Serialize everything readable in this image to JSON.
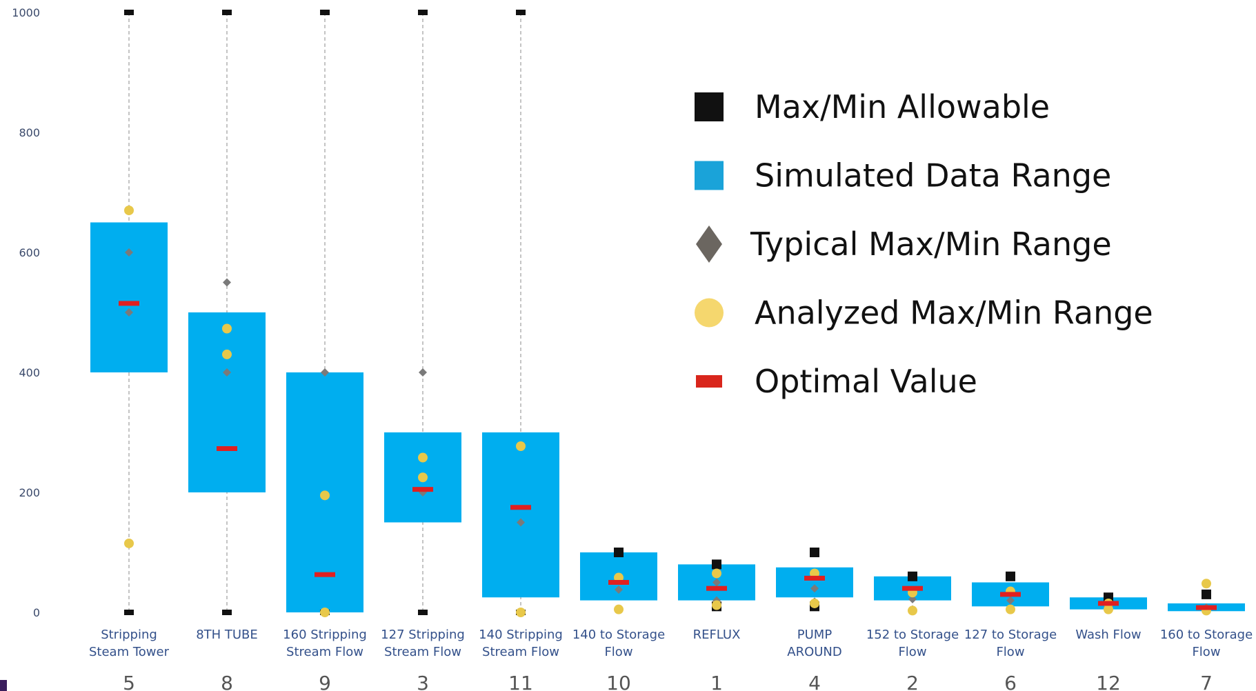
{
  "chart_data": {
    "type": "box-range",
    "ylim": [
      0,
      1000
    ],
    "yticks": [
      0,
      200,
      400,
      600,
      800,
      1000
    ],
    "grid": false,
    "legend_position": "top-right",
    "categories": [
      {
        "label": [
          "Stripping",
          "Steam Tower"
        ],
        "id": "5",
        "allow_max": 1000,
        "allow_min": 0,
        "sim_min": 400,
        "sim_max": 650,
        "typical": [
          600,
          500
        ],
        "analyzed": [
          670,
          115
        ],
        "optimal": 515
      },
      {
        "label": [
          "8TH TUBE"
        ],
        "id": "8",
        "allow_max": 1000,
        "allow_min": 0,
        "sim_min": 200,
        "sim_max": 500,
        "typical": [
          550,
          400
        ],
        "analyzed": [
          473,
          430
        ],
        "optimal": 273
      },
      {
        "label": [
          "160 Stripping",
          "Stream Flow"
        ],
        "id": "9",
        "allow_max": 1000,
        "allow_min": 0,
        "sim_min": 0,
        "sim_max": 400,
        "typical": [
          400,
          0
        ],
        "analyzed": [
          195,
          0
        ],
        "optimal": 63
      },
      {
        "label": [
          "127 Stripping",
          "Stream Flow"
        ],
        "id": "3",
        "allow_max": 1000,
        "allow_min": 0,
        "sim_min": 150,
        "sim_max": 300,
        "typical": [
          400,
          200
        ],
        "analyzed": [
          258,
          225
        ],
        "optimal": 205
      },
      {
        "label": [
          "140 Stripping",
          "Stream Flow"
        ],
        "id": "11",
        "allow_max": 1000,
        "allow_min": 0,
        "sim_min": 25,
        "sim_max": 300,
        "typical": [
          150,
          0
        ],
        "analyzed": [
          277,
          0
        ],
        "optimal": 175
      },
      {
        "label": [
          "140 to Storage",
          "Flow"
        ],
        "id": "10",
        "allow_max": 100,
        "allow_min": null,
        "sim_min": 20,
        "sim_max": 100,
        "typical": [
          38,
          5
        ],
        "analyzed": [
          58,
          5
        ],
        "optimal": 50
      },
      {
        "label": [
          "REFLUX"
        ],
        "id": "1",
        "allow_max": 80,
        "allow_min": 10,
        "sim_min": 20,
        "sim_max": 80,
        "typical": [
          50,
          20
        ],
        "analyzed": [
          65,
          12
        ],
        "optimal": 40
      },
      {
        "label": [
          "PUMP",
          "AROUND"
        ],
        "id": "4",
        "allow_max": 100,
        "allow_min": 10,
        "sim_min": 25,
        "sim_max": 75,
        "typical": [
          40,
          18
        ],
        "analyzed": [
          65,
          15
        ],
        "optimal": 57
      },
      {
        "label": [
          "152 to Storage",
          "Flow"
        ],
        "id": "2",
        "allow_max": 60,
        "allow_min": null,
        "sim_min": 20,
        "sim_max": 60,
        "typical": [
          22,
          5
        ],
        "analyzed": [
          33,
          3
        ],
        "optimal": 40
      },
      {
        "label": [
          "127 to Storage",
          "Flow"
        ],
        "id": "6",
        "allow_max": 60,
        "allow_min": null,
        "sim_min": 10,
        "sim_max": 50,
        "typical": [
          20,
          5
        ],
        "analyzed": [
          35,
          5
        ],
        "optimal": 30
      },
      {
        "label": [
          "Wash Flow"
        ],
        "id": "12",
        "allow_max": 25,
        "allow_min": null,
        "sim_min": 5,
        "sim_max": 25,
        "typical": [
          10,
          5
        ],
        "analyzed": [
          15,
          5
        ],
        "optimal": 15
      },
      {
        "label": [
          "160 to Storage",
          "Flow"
        ],
        "id": "7",
        "allow_max": 30,
        "allow_min": null,
        "sim_min": 2,
        "sim_max": 15,
        "typical": [
          8,
          5
        ],
        "analyzed": [
          48,
          3
        ],
        "optimal": 8
      }
    ],
    "legend": [
      {
        "key": "allowable",
        "label": "Max/Min Allowable",
        "shape": "square",
        "color": "#111111"
      },
      {
        "key": "simulated",
        "label": "Simulated Data Range",
        "shape": "square",
        "color": "#1aa3d9"
      },
      {
        "key": "typical",
        "label": "Typical Max/Min Range",
        "shape": "diamond",
        "color": "#6b6660"
      },
      {
        "key": "analyzed",
        "label": "Analyzed Max/Min Range",
        "shape": "circle",
        "color": "#f5d76e"
      },
      {
        "key": "optimal",
        "label": "Optimal Value",
        "shape": "dash",
        "color": "#d9261c"
      }
    ],
    "colors": {
      "allowable": "#111111",
      "simulated": "#00aeef",
      "typical": "#7a7a7a",
      "analyzed": "#e8c84a",
      "optimal": "#e02020",
      "guide": "#aaaaaa"
    }
  }
}
